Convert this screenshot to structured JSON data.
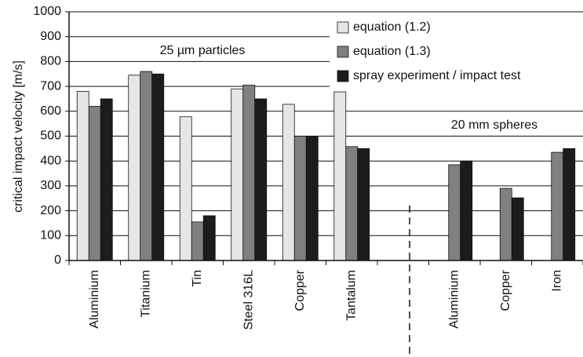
{
  "chart_data": {
    "type": "bar",
    "y_label": "critical impact velocity [m/s]",
    "annotations": [
      "25 µm particles",
      "20 mm spheres"
    ],
    "categories": [
      "Aluminium",
      "Titanium",
      "Tin",
      "Steel 316L",
      "Copper",
      "Tantalum",
      null,
      "Aluminium",
      "Copper",
      "Iron"
    ],
    "series": [
      {
        "name": "equation (1.2)",
        "color": "#e6e6e6",
        "values": [
          680,
          745,
          578,
          690,
          628,
          678,
          null,
          null,
          null,
          null
        ]
      },
      {
        "name": "equation (1.3)",
        "color": "#808080",
        "values": [
          620,
          760,
          155,
          705,
          500,
          458,
          null,
          385,
          290,
          435
        ]
      },
      {
        "name": "spray experiment / impact test",
        "color": "#1c1c1c",
        "values": [
          650,
          750,
          180,
          650,
          500,
          450,
          null,
          400,
          252,
          450
        ]
      }
    ],
    "ylim": [
      0,
      1000
    ],
    "yticks": [
      0,
      100,
      200,
      300,
      400,
      500,
      600,
      700,
      800,
      900,
      1000
    ],
    "grid": true,
    "legend": "top-right"
  }
}
